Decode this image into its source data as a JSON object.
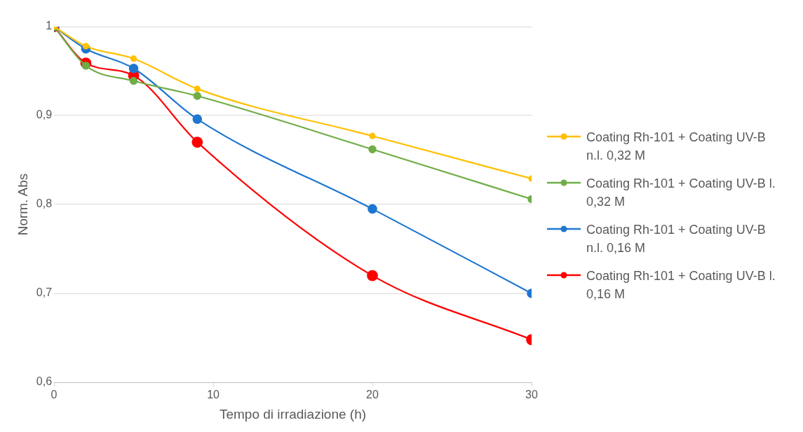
{
  "chart_data": {
    "type": "line",
    "xlabel": "Tempo di irradiazione (h)",
    "ylabel": "Norm. Abs",
    "x": [
      0,
      2,
      5,
      9,
      20,
      30
    ],
    "xlim": [
      0,
      30
    ],
    "xticks": [
      0,
      10,
      20,
      30
    ],
    "ylim": [
      0.6,
      1
    ],
    "yticks": [
      {
        "value": 0.6,
        "label": "0,6"
      },
      {
        "value": 0.7,
        "label": "0,7"
      },
      {
        "value": 0.8,
        "label": "0,8"
      },
      {
        "value": 0.9,
        "label": "0,9"
      },
      {
        "value": 1,
        "label": "1"
      }
    ],
    "grid": "y",
    "legend": "right",
    "marker": "circle",
    "line_style": "solid",
    "series": [
      {
        "name": "Coating Rh-101 + Coating UV-B n.l. 0,32 M",
        "color": "#ffc000",
        "values": [
          1,
          0.978,
          0.964,
          0.93,
          0.877,
          0.829
        ]
      },
      {
        "name": "Coating Rh-101 + Coating UV-B l. 0,32 M",
        "color": "#70ad47",
        "values": [
          1,
          0.956,
          0.939,
          0.922,
          0.862,
          0.806
        ]
      },
      {
        "name": "Coating Rh-101 + Coating UV-B n.l. 0,16 M",
        "color": "#1f77d0",
        "values": [
          1,
          0.975,
          0.953,
          0.896,
          0.795,
          0.7
        ]
      },
      {
        "name": "Coating Rh-101 + Coating UV-B l. 0,16 M",
        "color": "#ff0000",
        "values": [
          1,
          0.959,
          0.945,
          0.87,
          0.72,
          0.648
        ]
      }
    ]
  }
}
